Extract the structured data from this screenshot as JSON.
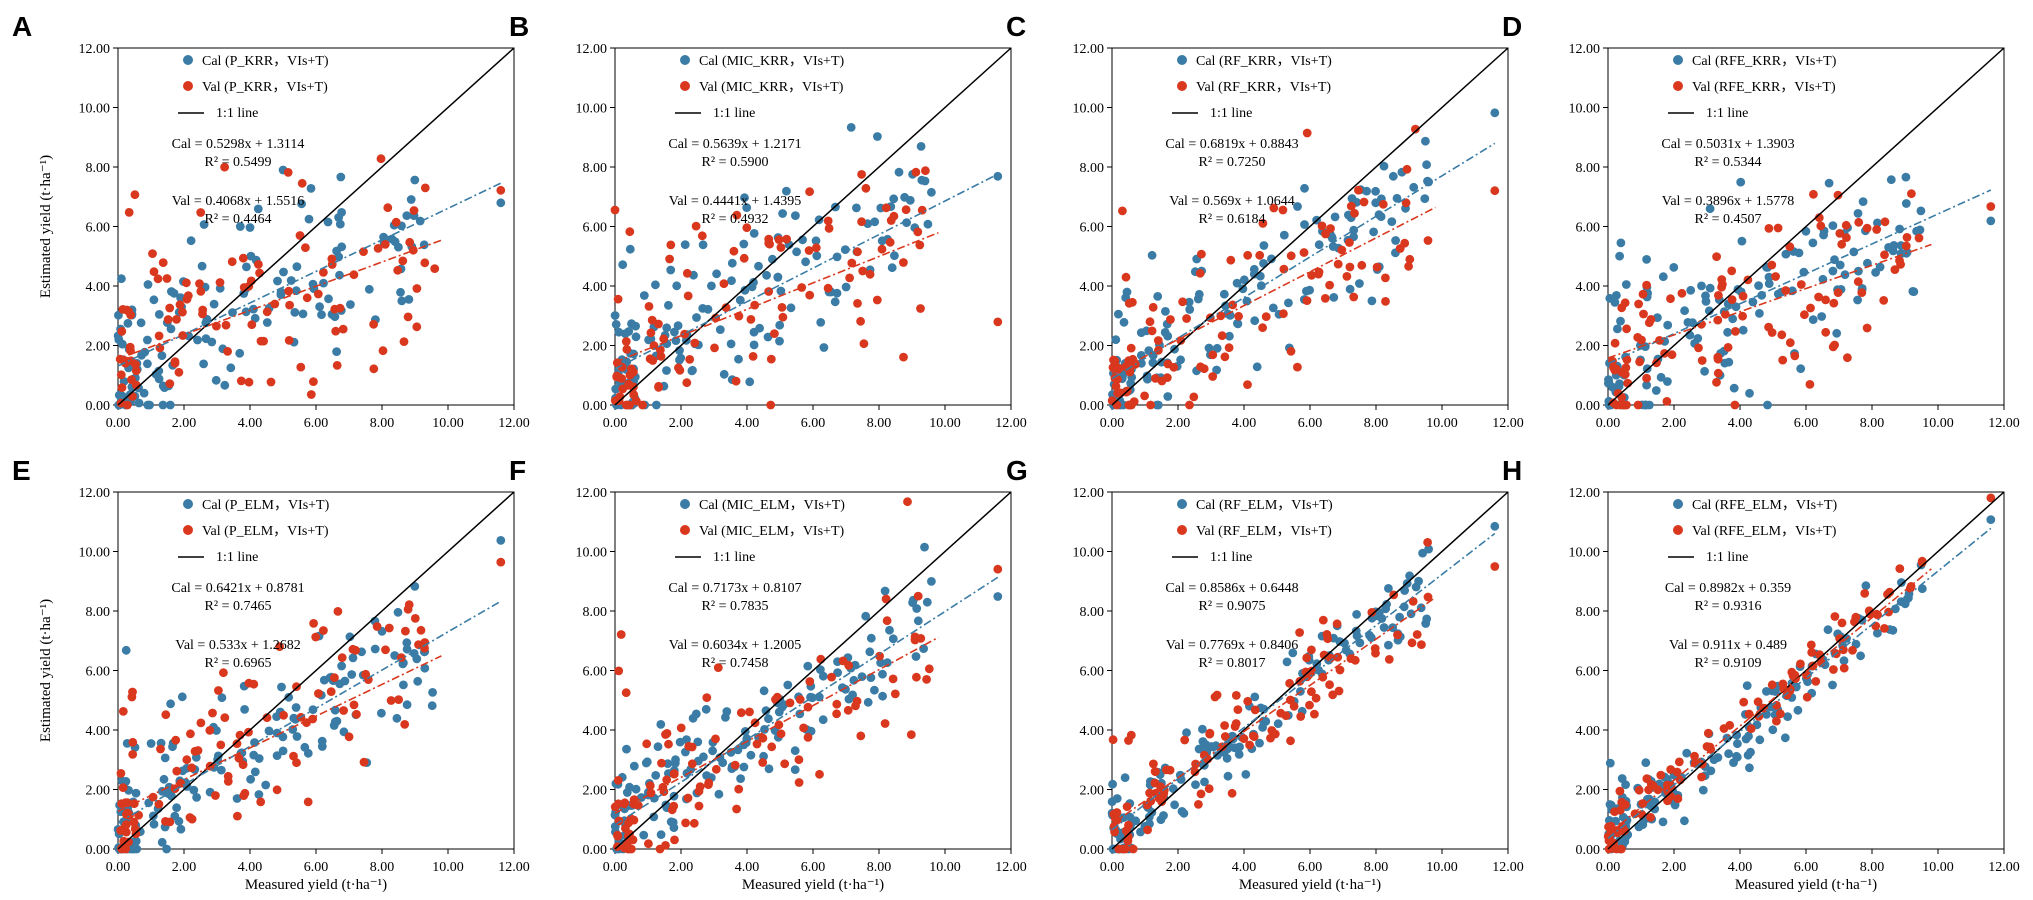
{
  "figure": {
    "y_axis_label": "Estimated yield (t·ha⁻¹)",
    "x_axis_label": "Measured yield (t·ha⁻¹)",
    "one_to_one_label": "1:1 line",
    "colors": {
      "cal": "#3A7CA5",
      "val": "#D9381E",
      "line": "#000000",
      "frame": "#000000"
    }
  },
  "chart_data": [
    {
      "letter": "A",
      "type": "scatter",
      "model": "P_KRR",
      "cal_label": "Cal (P_KRR，VIs+T)",
      "val_label": "Val (P_KRR，VIs+T)",
      "cal_eq": "Cal = 0.5298x + 1.3114",
      "cal_r2": "R² = 0.5499",
      "val_eq": "Val = 0.4068x + 1.5516",
      "val_r2": "R² = 0.4464",
      "cal_fit": {
        "slope": 0.5298,
        "intercept": 1.3114
      },
      "val_fit": {
        "slope": 0.4068,
        "intercept": 1.5516
      },
      "xlim": [
        0,
        12
      ],
      "ylim": [
        0,
        12
      ],
      "xticks": [
        "0.00",
        "2.00",
        "4.00",
        "6.00",
        "8.00",
        "10.00",
        "12.00"
      ],
      "yticks": [
        "0.00",
        "2.00",
        "4.00",
        "6.00",
        "8.00",
        "10.00",
        "12.00"
      ],
      "show_ylabel": true,
      "show_xlabel": false
    },
    {
      "letter": "B",
      "type": "scatter",
      "model": "MIC_KRR",
      "cal_label": "Cal (MIC_KRR，VIs+T)",
      "val_label": "Val (MIC_KRR，VIs+T)",
      "cal_eq": "Cal = 0.5639x + 1.2171",
      "cal_r2": "R² = 0.5900",
      "val_eq": "Val = 0.4441x + 1.4395",
      "val_r2": "R² = 0.4932",
      "cal_fit": {
        "slope": 0.5639,
        "intercept": 1.2171
      },
      "val_fit": {
        "slope": 0.4441,
        "intercept": 1.4395
      },
      "xlim": [
        0,
        12
      ],
      "ylim": [
        0,
        12
      ],
      "xticks": [
        "0.00",
        "2.00",
        "4.00",
        "6.00",
        "8.00",
        "10.00",
        "12.00"
      ],
      "yticks": [
        "0.00",
        "2.00",
        "4.00",
        "6.00",
        "8.00",
        "10.00",
        "12.00"
      ],
      "show_ylabel": false,
      "show_xlabel": false
    },
    {
      "letter": "C",
      "type": "scatter",
      "model": "RF_KRR",
      "cal_label": "Cal (RF_KRR，VIs+T)",
      "val_label": "Val (RF_KRR，VIs+T)",
      "cal_eq": "Cal = 0.6819x + 0.8843",
      "cal_r2": "R² = 0.7250",
      "val_eq": "Val = 0.569x + 1.0644",
      "val_r2": "R² = 0.6184",
      "cal_fit": {
        "slope": 0.6819,
        "intercept": 0.8843
      },
      "val_fit": {
        "slope": 0.569,
        "intercept": 1.0644
      },
      "xlim": [
        0,
        12
      ],
      "ylim": [
        0,
        12
      ],
      "xticks": [
        "0.00",
        "2.00",
        "4.00",
        "6.00",
        "8.00",
        "10.00",
        "12.00"
      ],
      "yticks": [
        "0.00",
        "2.00",
        "4.00",
        "6.00",
        "8.00",
        "10.00",
        "12.00"
      ],
      "show_ylabel": false,
      "show_xlabel": false
    },
    {
      "letter": "D",
      "type": "scatter",
      "model": "RFE_KRR",
      "cal_label": "Cal (RFE_KRR，VIs+T)",
      "val_label": "Val (RFE_KRR，VIs+T)",
      "cal_eq": "Cal = 0.5031x + 1.3903",
      "cal_r2": "R² = 0.5344",
      "val_eq": "Val = 0.3896x + 1.5778",
      "val_r2": "R² = 0.4507",
      "cal_fit": {
        "slope": 0.5031,
        "intercept": 1.3903
      },
      "val_fit": {
        "slope": 0.3896,
        "intercept": 1.5778
      },
      "xlim": [
        0,
        12
      ],
      "ylim": [
        0,
        12
      ],
      "xticks": [
        "0.00",
        "2.00",
        "4.00",
        "6.00",
        "8.00",
        "10.00",
        "12.00"
      ],
      "yticks": [
        "0.00",
        "2.00",
        "4.00",
        "6.00",
        "8.00",
        "10.00",
        "12.00"
      ],
      "show_ylabel": false,
      "show_xlabel": false
    },
    {
      "letter": "E",
      "type": "scatter",
      "model": "P_ELM",
      "cal_label": "Cal (P_ELM，VIs+T)",
      "val_label": "Val (P_ELM，VIs+T)",
      "cal_eq": "Cal = 0.6421x + 0.8781",
      "cal_r2": "R² = 0.7465",
      "val_eq": "Val = 0.533x + 1.2682",
      "val_r2": "R² = 0.6965",
      "cal_fit": {
        "slope": 0.6421,
        "intercept": 0.8781
      },
      "val_fit": {
        "slope": 0.533,
        "intercept": 1.2682
      },
      "xlim": [
        0,
        12
      ],
      "ylim": [
        0,
        12
      ],
      "xticks": [
        "0.00",
        "2.00",
        "4.00",
        "6.00",
        "8.00",
        "10.00",
        "12.00"
      ],
      "yticks": [
        "0.00",
        "2.00",
        "4.00",
        "6.00",
        "8.00",
        "10.00",
        "12.00"
      ],
      "show_ylabel": true,
      "show_xlabel": true
    },
    {
      "letter": "F",
      "type": "scatter",
      "model": "MIC_ELM",
      "cal_label": "Cal (MIC_ELM，VIs+T)",
      "val_label": "Val (MIC_ELM，VIs+T)",
      "cal_eq": "Cal = 0.7173x + 0.8107",
      "cal_r2": "R² = 0.7835",
      "val_eq": "Val = 0.6034x + 1.2005",
      "val_r2": "R² = 0.7458",
      "cal_fit": {
        "slope": 0.7173,
        "intercept": 0.8107
      },
      "val_fit": {
        "slope": 0.6034,
        "intercept": 1.2005
      },
      "xlim": [
        0,
        12
      ],
      "ylim": [
        0,
        12
      ],
      "xticks": [
        "0.00",
        "2.00",
        "4.00",
        "6.00",
        "8.00",
        "10.00",
        "12.00"
      ],
      "yticks": [
        "0.00",
        "2.00",
        "4.00",
        "6.00",
        "8.00",
        "10.00",
        "12.00"
      ],
      "show_ylabel": false,
      "show_xlabel": true
    },
    {
      "letter": "G",
      "type": "scatter",
      "model": "RF_ELM",
      "cal_label": "Cal (RF_ELM，VIs+T)",
      "val_label": "Val (RF_ELM，VIs+T)",
      "cal_eq": "Cal = 0.8586x + 0.6448",
      "cal_r2": "R² = 0.9075",
      "val_eq": "Val = 0.7769x + 0.8406",
      "val_r2": "R² = 0.8017",
      "cal_fit": {
        "slope": 0.8586,
        "intercept": 0.6448
      },
      "val_fit": {
        "slope": 0.7769,
        "intercept": 0.8406
      },
      "xlim": [
        0,
        12
      ],
      "ylim": [
        0,
        12
      ],
      "xticks": [
        "0.00",
        "2.00",
        "4.00",
        "6.00",
        "8.00",
        "10.00",
        "12.00"
      ],
      "yticks": [
        "0.00",
        "2.00",
        "4.00",
        "6.00",
        "8.00",
        "10.00",
        "12.00"
      ],
      "show_ylabel": false,
      "show_xlabel": true
    },
    {
      "letter": "H",
      "type": "scatter",
      "model": "RFE_ELM",
      "cal_label": "Cal (RFE_ELM，VIs+T)",
      "val_label": "Val (RFE_ELM，VIs+T)",
      "cal_eq": "Cal = 0.8982x + 0.359",
      "cal_r2": "R² = 0.9316",
      "val_eq": "Val = 0.911x + 0.489",
      "val_r2": "R² = 0.9109",
      "cal_fit": {
        "slope": 0.8982,
        "intercept": 0.359
      },
      "val_fit": {
        "slope": 0.911,
        "intercept": 0.489
      },
      "xlim": [
        0,
        12
      ],
      "ylim": [
        0,
        12
      ],
      "xticks": [
        "0.00",
        "2.00",
        "4.00",
        "6.00",
        "8.00",
        "10.00",
        "12.00"
      ],
      "yticks": [
        "0.00",
        "2.00",
        "4.00",
        "6.00",
        "8.00",
        "10.00",
        "12.00"
      ],
      "show_ylabel": false,
      "show_xlabel": true
    }
  ]
}
